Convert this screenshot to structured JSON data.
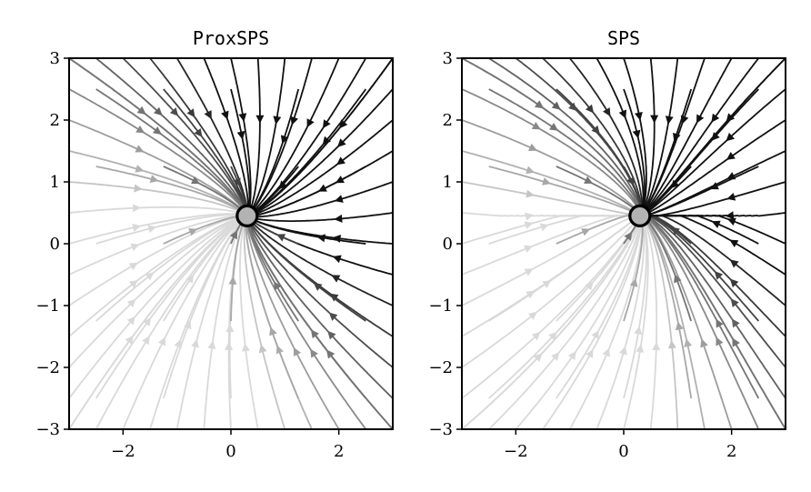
{
  "chart_data": [
    {
      "type": "streamplot",
      "title": "ProxSPS",
      "xlim": [
        -3,
        3
      ],
      "ylim": [
        -3,
        3
      ],
      "xticks": [
        -2,
        0,
        2
      ],
      "yticks": [
        -3,
        -2,
        -1,
        0,
        1,
        2,
        3
      ],
      "xtick_labels": [
        "−2",
        "0",
        "2"
      ],
      "ytick_labels": [
        "−3",
        "−2",
        "−1",
        "0",
        "1",
        "2",
        "3"
      ],
      "grid": false,
      "fixed_point": {
        "x": 0.3,
        "y": 0.45
      },
      "field": "ProxSPS",
      "colors": {
        "line_dark": "#111111",
        "line_light": "#e0e0e0",
        "point_fill": "#b3b3b3"
      }
    },
    {
      "type": "streamplot",
      "title": "SPS",
      "xlim": [
        -3,
        3
      ],
      "ylim": [
        -3,
        3
      ],
      "xticks": [
        -2,
        0,
        2
      ],
      "yticks": [
        -3,
        -2,
        -1,
        0,
        1,
        2,
        3
      ],
      "xtick_labels": [
        "−2",
        "0",
        "2"
      ],
      "ytick_labels": [
        "−3",
        "−2",
        "−1",
        "0",
        "1",
        "2",
        "3"
      ],
      "grid": false,
      "fixed_point": {
        "x": 0.3,
        "y": 0.45
      },
      "field": "SPS",
      "colors": {
        "line_dark": "#111111",
        "line_light": "#e0e0e0",
        "point_fill": "#b3b3b3"
      }
    }
  ]
}
